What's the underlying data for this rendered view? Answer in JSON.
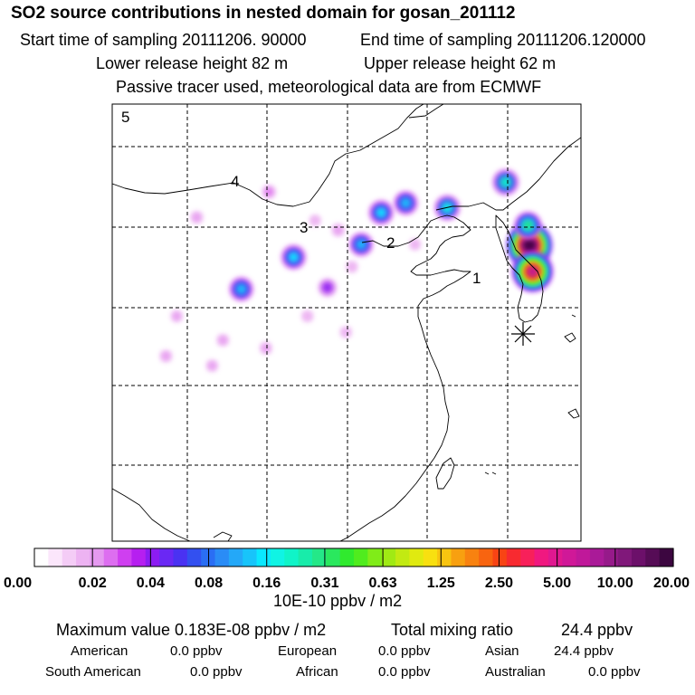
{
  "header": {
    "title": "SO2 source contributions in nested domain for gosan_201112",
    "start": "Start time of sampling 20111206. 90000",
    "end": "End time of sampling 20111206.120000",
    "lower": "Lower release height   82 m",
    "upper": "Upper release height   62 m",
    "note": "Passive tracer used, meteorological data are from ECMWF"
  },
  "map": {
    "region_labels": [
      "5",
      "4",
      "3",
      "2",
      "1"
    ],
    "receptor_icon": "asterisk-marker-icon"
  },
  "chart_data": {
    "type": "heatmap",
    "title": "SO2 source contributions in nested domain for gosan_201112",
    "colorbar": {
      "tick_labels": [
        "0.00",
        "0.02",
        "0.04",
        "0.08",
        "0.16",
        "0.31",
        "0.63",
        "1.25",
        "2.50",
        "5.00",
        "10.00",
        "20.00"
      ],
      "tick_values": [
        0.0,
        0.02,
        0.04,
        0.08,
        0.16,
        0.31,
        0.63,
        1.25,
        2.5,
        5.0,
        10.0,
        20.0
      ],
      "unit": "10E-10 ppbv / m2",
      "colors": [
        "#ffffff",
        "#fbe6fb",
        "#f4ccf6",
        "#edb3f2",
        "#e599f0",
        "#dd6ef0",
        "#cf3ff0",
        "#b61ff0",
        "#8c1cf2",
        "#6a28f4",
        "#4a32f2",
        "#3350f0",
        "#2a6ef4",
        "#2a8cf6",
        "#24a8f8",
        "#18c4fa",
        "#0ae8ff",
        "#10f4e4",
        "#10f4c8",
        "#18ecaa",
        "#24e888",
        "#2ae85e",
        "#30ea2e",
        "#50ec1e",
        "#80ec18",
        "#a0ea14",
        "#c2ea12",
        "#e0ea10",
        "#f8e010",
        "#f8c410",
        "#f8a010",
        "#f88210",
        "#f86410",
        "#f84414",
        "#f82a30",
        "#f8205a",
        "#f01880",
        "#e01890",
        "#d01898",
        "#c0189a",
        "#aa1a98",
        "#961a8a",
        "#80187a",
        "#6c106a",
        "#560c56",
        "#3c0640"
      ]
    },
    "spots": [
      {
        "lon": 126.95,
        "lat": 36.95,
        "level": 0.95
      },
      {
        "lon": 127.15,
        "lat": 35.3,
        "level": 0.82
      },
      {
        "lon": 126.85,
        "lat": 38.2,
        "level": 0.45
      },
      {
        "lon": 125.4,
        "lat": 40.9,
        "level": 0.42
      },
      {
        "lon": 121.6,
        "lat": 39.3,
        "level": 0.4
      },
      {
        "lon": 118.9,
        "lat": 39.6,
        "level": 0.36
      },
      {
        "lon": 117.3,
        "lat": 39.0,
        "level": 0.38
      },
      {
        "lon": 116.0,
        "lat": 37.0,
        "level": 0.35
      },
      {
        "lon": 111.6,
        "lat": 36.2,
        "level": 0.38
      },
      {
        "lon": 108.2,
        "lat": 34.2,
        "level": 0.36
      },
      {
        "lon": 113.8,
        "lat": 34.3,
        "level": 0.2
      },
      {
        "lon": 110.0,
        "lat": 40.3,
        "level": 0.08
      },
      {
        "lon": 114.5,
        "lat": 37.9,
        "level": 0.06
      },
      {
        "lon": 105.3,
        "lat": 38.7,
        "level": 0.05
      },
      {
        "lon": 103.3,
        "lat": 30.0,
        "level": 0.04
      },
      {
        "lon": 107.0,
        "lat": 31.0,
        "level": 0.035
      },
      {
        "lon": 109.8,
        "lat": 30.5,
        "level": 0.035
      },
      {
        "lon": 104.0,
        "lat": 32.5,
        "level": 0.03
      },
      {
        "lon": 106.3,
        "lat": 29.4,
        "level": 0.03
      },
      {
        "lon": 112.5,
        "lat": 32.5,
        "level": 0.025
      },
      {
        "lon": 115.4,
        "lat": 35.6,
        "level": 0.02
      },
      {
        "lon": 115.0,
        "lat": 31.5,
        "level": 0.02
      },
      {
        "lon": 119.5,
        "lat": 37.0,
        "level": 0.02
      },
      {
        "lon": 113.0,
        "lat": 38.5,
        "level": 0.015
      }
    ],
    "receptor": {
      "lon": 126.16,
      "lat": 33.29,
      "name": "gosan"
    }
  },
  "summary": {
    "max_label": "Maximum value  0.183E-08 ppbv / m2",
    "total_label": "Total mixing ratio",
    "total_value": "24.4 ppbv",
    "american_label": "American",
    "american_value": "0.0 ppbv",
    "european_label": "European",
    "european_value": "0.0 ppbv",
    "asian_label": "Asian",
    "asian_value": "24.4 ppbv",
    "south_american_label": "South American",
    "south_american_value": "0.0 ppbv",
    "african_label": "African",
    "african_value": "0.0 ppbv",
    "australian_label": "Australian",
    "australian_value": "0.0 ppbv"
  }
}
